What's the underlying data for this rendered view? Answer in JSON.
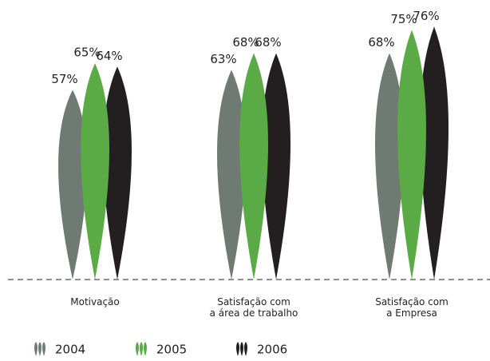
{
  "chart_data": {
    "type": "leaf-bar",
    "categories": [
      "Motivação",
      "Satisfação com\na área de trabalho",
      "Satisfação com\na Empresa"
    ],
    "series": [
      {
        "name": "2004",
        "color": "#6e7a72",
        "values": [
          57,
          63,
          68
        ],
        "value_labels": [
          "57%",
          "63%",
          "68%"
        ]
      },
      {
        "name": "2005",
        "color": "#5aaa46",
        "values": [
          65,
          68,
          75
        ],
        "value_labels": [
          "65%",
          "68%",
          "75%"
        ]
      },
      {
        "name": "2006",
        "color": "#231f20",
        "values": [
          64,
          68,
          76
        ],
        "value_labels": [
          "64%",
          "68%",
          "76%"
        ]
      }
    ],
    "ylim": [
      0,
      84
    ]
  }
}
